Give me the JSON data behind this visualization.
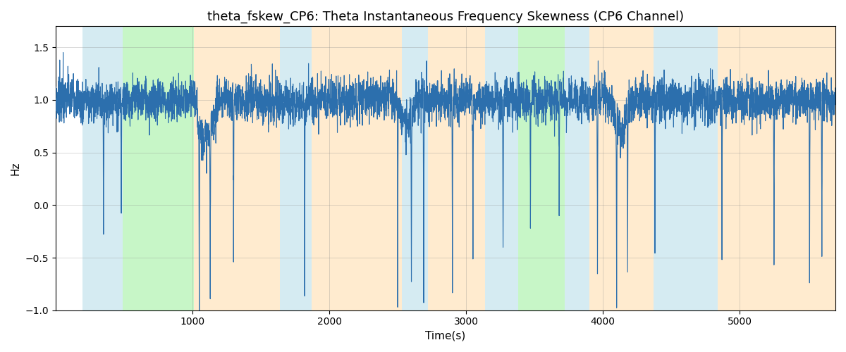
{
  "title": "theta_fskew_CP6: Theta Instantaneous Frequency Skewness (CP6 Channel)",
  "xlabel": "Time(s)",
  "ylabel": "Hz",
  "xlim": [
    0,
    5700
  ],
  "ylim": [
    -1.0,
    1.7
  ],
  "yticks": [
    -1.0,
    -0.5,
    0.0,
    0.5,
    1.0,
    1.5
  ],
  "xticks": [
    1000,
    2000,
    3000,
    4000,
    5000
  ],
  "line_color": "#2c6fad",
  "line_width": 0.8,
  "bg_bands": [
    {
      "xmin": 195,
      "xmax": 490,
      "color": "#add8e6",
      "alpha": 0.5
    },
    {
      "xmin": 490,
      "xmax": 1010,
      "color": "#90ee90",
      "alpha": 0.5
    },
    {
      "xmin": 1010,
      "xmax": 1640,
      "color": "#ffd8a0",
      "alpha": 0.5
    },
    {
      "xmin": 1640,
      "xmax": 1870,
      "color": "#add8e6",
      "alpha": 0.5
    },
    {
      "xmin": 1870,
      "xmax": 2530,
      "color": "#ffd8a0",
      "alpha": 0.5
    },
    {
      "xmin": 2530,
      "xmax": 2720,
      "color": "#add8e6",
      "alpha": 0.5
    },
    {
      "xmin": 2720,
      "xmax": 3140,
      "color": "#ffd8a0",
      "alpha": 0.5
    },
    {
      "xmin": 3140,
      "xmax": 3380,
      "color": "#add8e6",
      "alpha": 0.5
    },
    {
      "xmin": 3380,
      "xmax": 3720,
      "color": "#90ee90",
      "alpha": 0.5
    },
    {
      "xmin": 3720,
      "xmax": 3900,
      "color": "#add8e6",
      "alpha": 0.5
    },
    {
      "xmin": 3900,
      "xmax": 4370,
      "color": "#ffd8a0",
      "alpha": 0.5
    },
    {
      "xmin": 4370,
      "xmax": 4840,
      "color": "#add8e6",
      "alpha": 0.5
    },
    {
      "xmin": 4840,
      "xmax": 5700,
      "color": "#ffd8a0",
      "alpha": 0.5
    }
  ],
  "title_fontsize": 13,
  "label_fontsize": 11
}
